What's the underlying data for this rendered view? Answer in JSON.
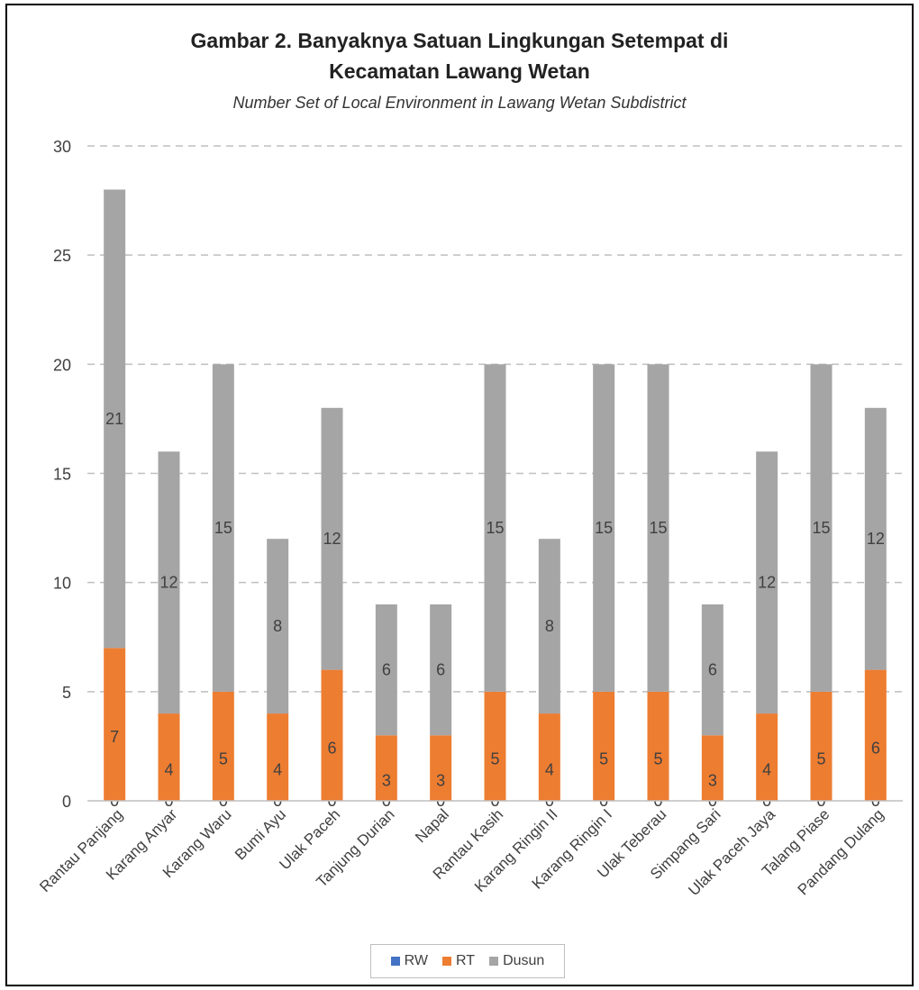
{
  "chart_data": {
    "type": "bar",
    "stacked": true,
    "title_line1": "Gambar 2. Banyaknya Satuan Lingkungan Setempat di",
    "title_line2": "Kecamatan Lawang Wetan",
    "subtitle": "Number Set of Local Environment in  Lawang Wetan Subdistrict",
    "categories": [
      "Rantau Panjang",
      "Karang Anyar",
      "Karang Waru",
      "Bumi Ayu",
      "Ulak Paceh",
      "Tanjung Durian",
      "Napal",
      "Rantau Kasih",
      "Karang Ringin II",
      "Karang Ringin I",
      "Ulak Teberau",
      "Simpang Sari",
      "Ulak Paceh Jaya",
      "Talang Piase",
      "Pandang Dulang"
    ],
    "series": [
      {
        "name": "RW",
        "color": "#4472c4",
        "values": [
          0,
          0,
          0,
          0,
          0,
          0,
          0,
          0,
          0,
          0,
          0,
          0,
          0,
          0,
          0
        ]
      },
      {
        "name": "RT",
        "color": "#ed7d31",
        "values": [
          7,
          4,
          5,
          4,
          6,
          3,
          3,
          5,
          4,
          5,
          5,
          3,
          4,
          5,
          6
        ]
      },
      {
        "name": "Dusun",
        "color": "#a5a5a5",
        "values": [
          21,
          12,
          15,
          8,
          12,
          6,
          6,
          15,
          8,
          15,
          15,
          6,
          12,
          15,
          12
        ]
      }
    ],
    "yticks": [
      "0",
      "5",
      "10",
      "15",
      "20",
      "25",
      "30"
    ],
    "ylim": [
      0,
      30
    ],
    "grid": true,
    "gridline_style": "dashed",
    "legend_position": "bottom"
  }
}
